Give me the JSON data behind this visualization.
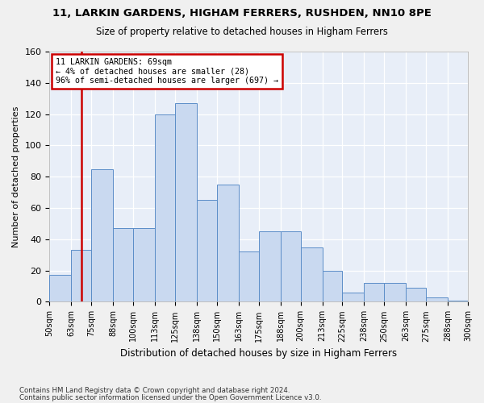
{
  "title1": "11, LARKIN GARDENS, HIGHAM FERRERS, RUSHDEN, NN10 8PE",
  "title2": "Size of property relative to detached houses in Higham Ferrers",
  "xlabel": "Distribution of detached houses by size in Higham Ferrers",
  "ylabel": "Number of detached properties",
  "footnote1": "Contains HM Land Registry data © Crown copyright and database right 2024.",
  "footnote2": "Contains public sector information licensed under the Open Government Licence v3.0.",
  "annotation_line1": "11 LARKIN GARDENS: 69sqm",
  "annotation_line2": "← 4% of detached houses are smaller (28)",
  "annotation_line3": "96% of semi-detached houses are larger (697) →",
  "property_size": 69,
  "bar_color": "#c9d9f0",
  "bar_edge_color": "#5b8dc8",
  "vline_color": "#cc0000",
  "annotation_box_edge": "#cc0000",
  "annotation_box_face": "#ffffff",
  "bg_color": "#e8eef8",
  "grid_color": "#ffffff",
  "bin_left_edges": [
    50,
    63,
    75,
    88,
    100,
    113,
    125,
    138,
    150,
    163,
    175,
    188,
    200,
    213,
    225,
    238,
    250,
    263,
    275,
    288
  ],
  "bin_right_edges": [
    63,
    75,
    88,
    100,
    113,
    125,
    138,
    150,
    163,
    175,
    188,
    200,
    213,
    225,
    238,
    250,
    263,
    275,
    288,
    300
  ],
  "tick_positions": [
    50,
    63,
    75,
    88,
    100,
    113,
    125,
    138,
    150,
    163,
    175,
    188,
    200,
    213,
    225,
    238,
    250,
    263,
    275,
    288,
    300
  ],
  "tick_labels": [
    "50sqm",
    "63sqm",
    "75sqm",
    "88sqm",
    "100sqm",
    "113sqm",
    "125sqm",
    "138sqm",
    "150sqm",
    "163sqm",
    "175sqm",
    "188sqm",
    "200sqm",
    "213sqm",
    "225sqm",
    "238sqm",
    "250sqm",
    "263sqm",
    "275sqm",
    "288sqm",
    "300sqm"
  ],
  "bar_heights": [
    17,
    33,
    85,
    47,
    47,
    120,
    127,
    65,
    75,
    32,
    45,
    45,
    35,
    20,
    6,
    12,
    12,
    9,
    3,
    1
  ],
  "ylim": [
    0,
    160
  ],
  "yticks": [
    0,
    20,
    40,
    60,
    80,
    100,
    120,
    140,
    160
  ]
}
